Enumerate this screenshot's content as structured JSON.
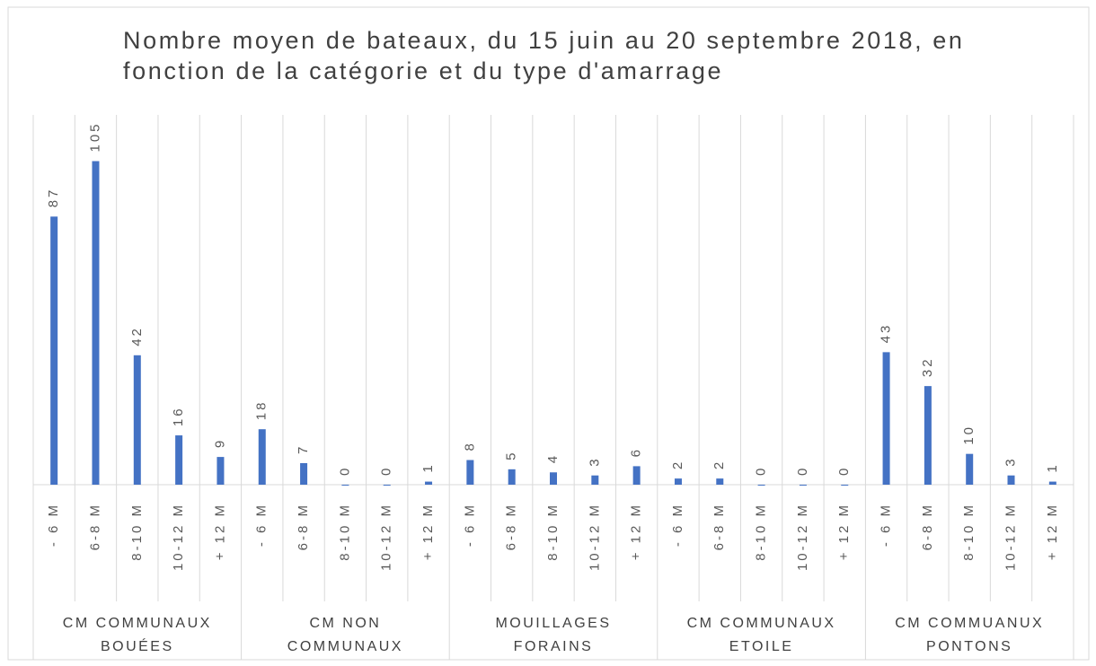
{
  "chart_data": {
    "type": "bar",
    "title": "Nombre moyen de bateaux, du 15 juin au 20 septembre 2018, en fonction de la catégorie et du type d'amarrage",
    "categories": [
      "- 6 M",
      "6-8 M",
      "8-10 M",
      "10-12 M",
      "+ 12 M",
      "- 6 M",
      "6-8 M",
      "8-10 M",
      "10-12 M",
      "+ 12 M",
      "- 6 M",
      "6-8 M",
      "8-10 M",
      "10-12 M",
      "+ 12 M",
      "- 6 M",
      "6-8 M",
      "8-10 M",
      "10-12 M",
      "+ 12 M",
      "- 6 M",
      "6-8 M",
      "8-10 M",
      "10-12 M",
      "+ 12 M"
    ],
    "values": [
      87,
      105,
      42,
      16,
      9,
      18,
      7,
      0,
      0,
      1,
      8,
      5,
      4,
      3,
      6,
      2,
      2,
      0,
      0,
      0,
      43,
      32,
      10,
      3,
      1
    ],
    "group_labels": [
      "CM COMMUNAUX BOUÉES",
      "CM NON COMMUNAUX",
      "MOUILLAGES FORAINS",
      "CM COMMUNAUX ETOILE",
      "CM COMMUANUX PONTONS"
    ],
    "color": "#4472c4",
    "ylim": [
      0,
      120
    ]
  }
}
